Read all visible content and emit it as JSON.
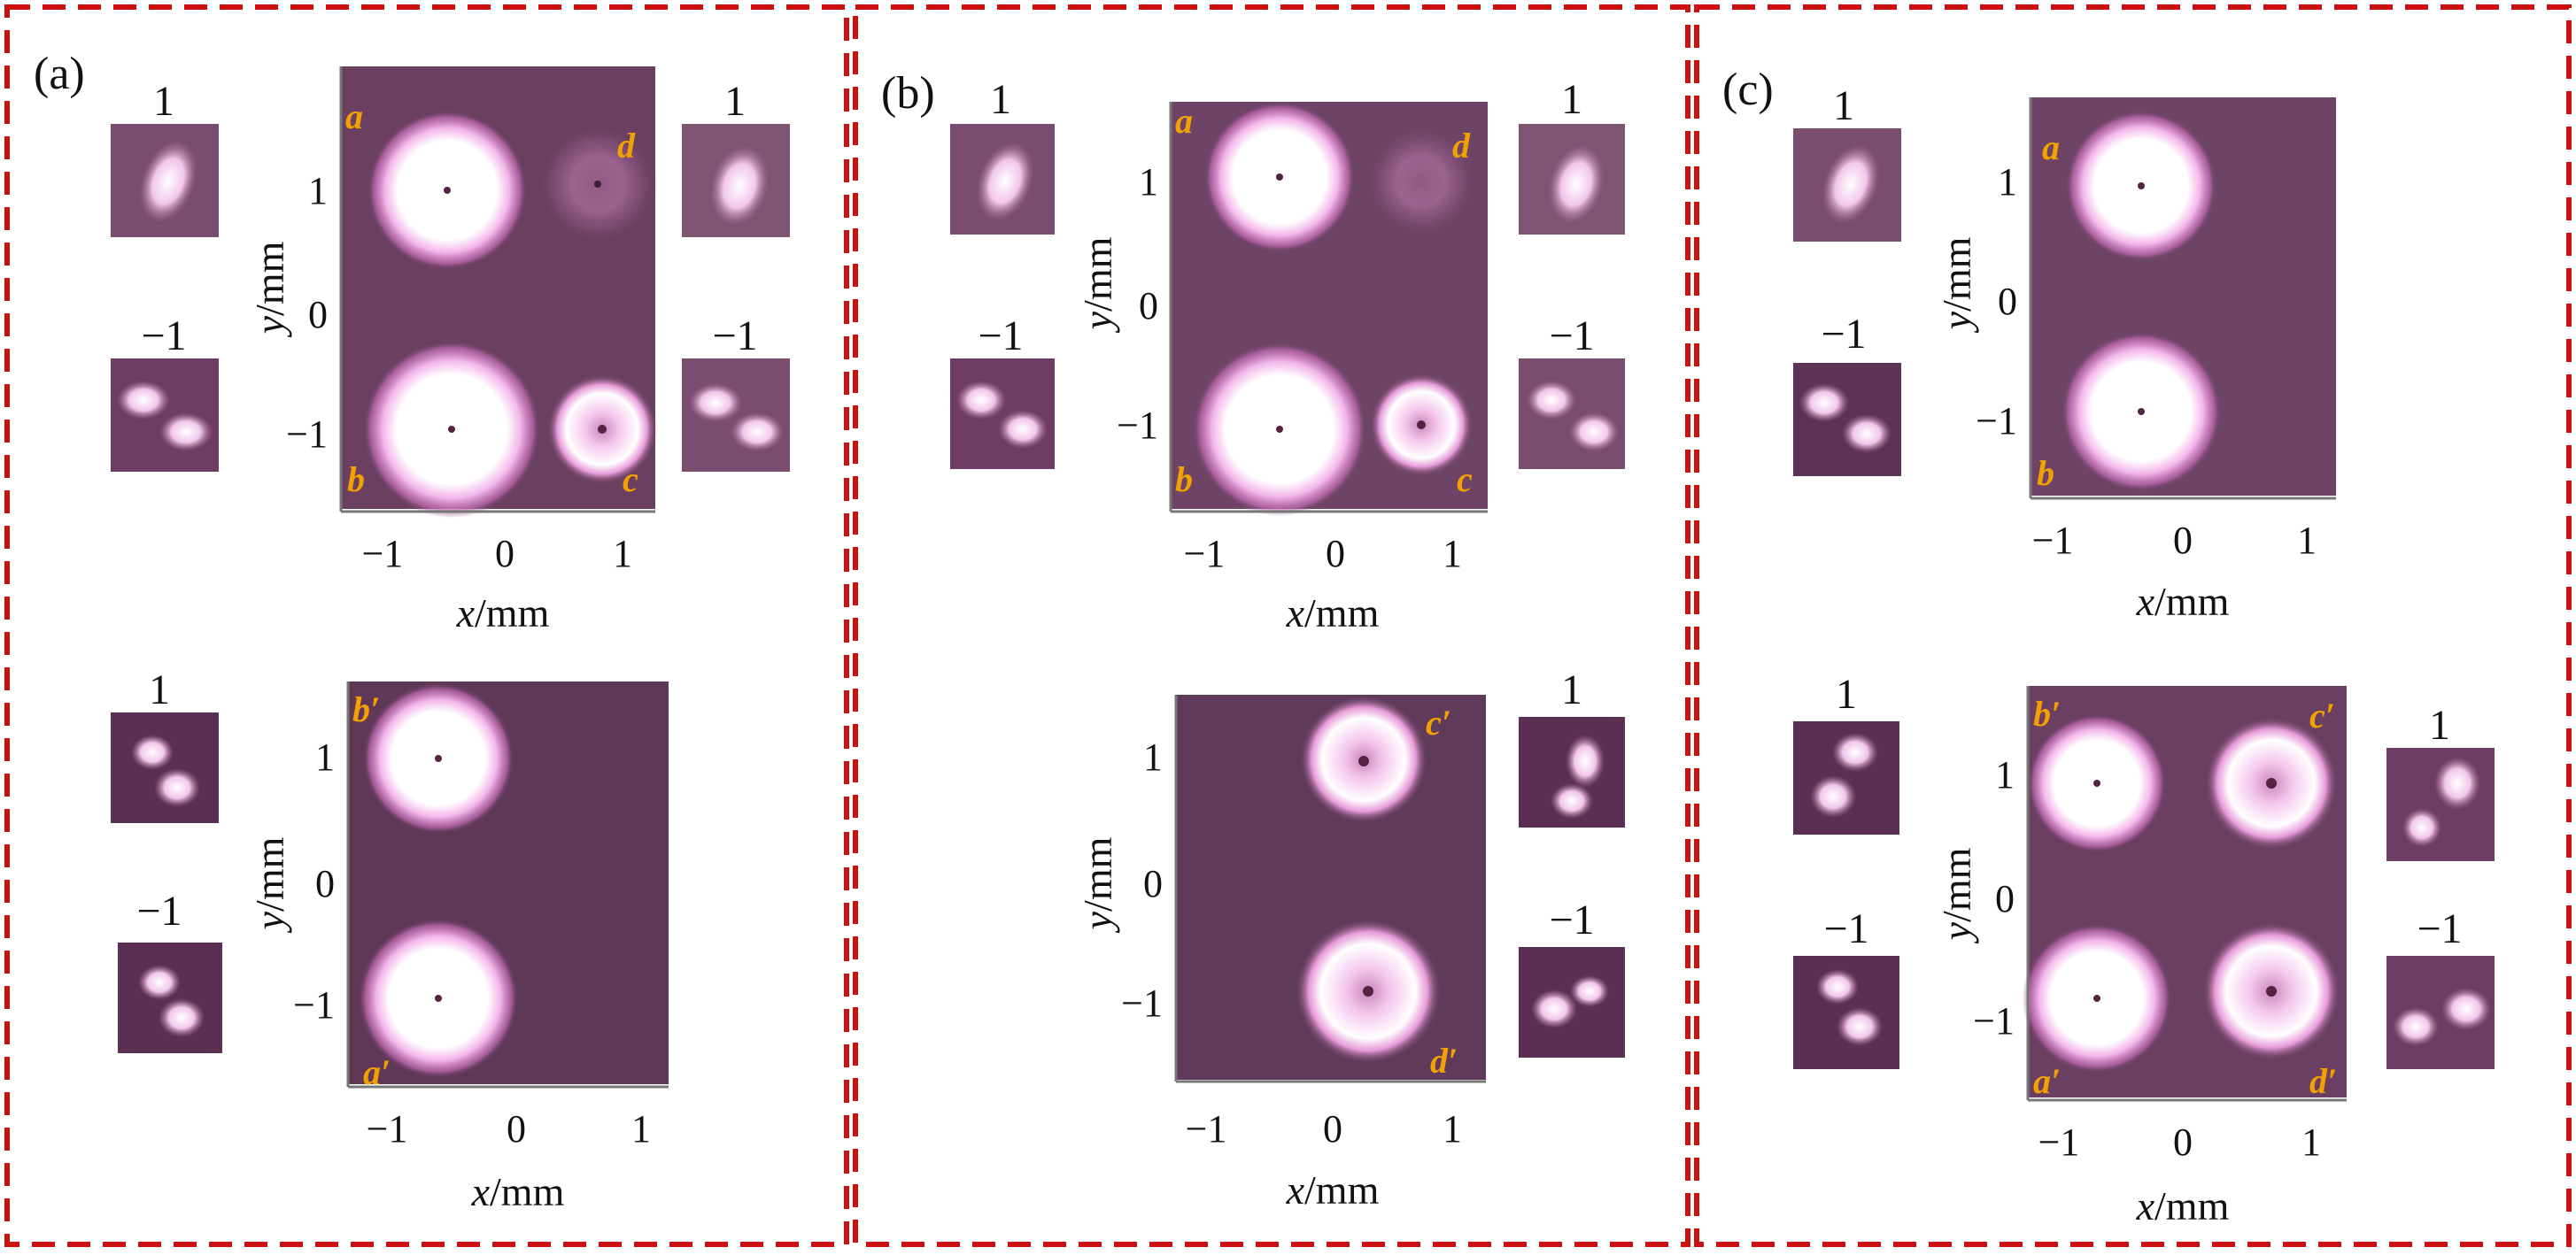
{
  "colors": {
    "frame": "#cc1111",
    "background": "#6a3f60",
    "spot": "#ffffff",
    "glow": "#e07ad0",
    "marker": "#f2a100"
  },
  "panels": [
    {
      "label": "(a)",
      "top": {
        "markers": [
          "a",
          "d",
          "b",
          "c"
        ],
        "xticks": [
          "−1",
          "0",
          "1"
        ],
        "yticks": [
          "1",
          "0",
          "−1"
        ],
        "xlabel_var": "x",
        "xlabel_unit": "/mm",
        "ylabel_var": "y",
        "ylabel_unit": "/mm",
        "insets_left": [
          "1",
          "−1"
        ],
        "insets_right": [
          "1",
          "−1"
        ]
      },
      "bottom": {
        "markers": [
          "b′",
          "a′"
        ],
        "xticks": [
          "−1",
          "0",
          "1"
        ],
        "yticks": [
          "1",
          "0",
          "−1"
        ],
        "xlabel_var": "x",
        "xlabel_unit": "/mm",
        "ylabel_var": "y",
        "ylabel_unit": "/mm",
        "insets_left": [
          "1",
          "−1"
        ]
      }
    },
    {
      "label": "(b)",
      "top": {
        "markers": [
          "a",
          "d",
          "b",
          "c"
        ],
        "xticks": [
          "−1",
          "0",
          "1"
        ],
        "yticks": [
          "1",
          "0",
          "−1"
        ],
        "xlabel_var": "x",
        "xlabel_unit": "/mm",
        "ylabel_var": "y",
        "ylabel_unit": "/mm",
        "insets_left": [
          "1",
          "−1"
        ],
        "insets_right": [
          "1",
          "−1"
        ]
      },
      "bottom": {
        "markers": [
          "c′",
          "d′"
        ],
        "xticks": [
          "−1",
          "0",
          "1"
        ],
        "yticks": [
          "1",
          "0",
          "−1"
        ],
        "xlabel_var": "x",
        "xlabel_unit": "/mm",
        "ylabel_var": "y",
        "ylabel_unit": "/mm",
        "insets_right": [
          "1",
          "−1"
        ]
      }
    },
    {
      "label": "(c)",
      "top": {
        "markers": [
          "a",
          "b"
        ],
        "xticks": [
          "−1",
          "0",
          "1"
        ],
        "yticks": [
          "1",
          "0",
          "−1"
        ],
        "xlabel_var": "x",
        "xlabel_unit": "/mm",
        "ylabel_var": "y",
        "ylabel_unit": "/mm",
        "insets_left": [
          "1",
          "−1"
        ]
      },
      "bottom": {
        "markers": [
          "b′",
          "c′",
          "a′",
          "d′"
        ],
        "xticks": [
          "−1",
          "0",
          "1"
        ],
        "yticks": [
          "1",
          "0",
          "−1"
        ],
        "xlabel_var": "x",
        "xlabel_unit": "/mm",
        "ylabel_var": "y",
        "ylabel_unit": "/mm",
        "insets_left": [
          "1",
          "−1"
        ],
        "insets_right": [
          "1",
          "−1"
        ]
      }
    }
  ]
}
